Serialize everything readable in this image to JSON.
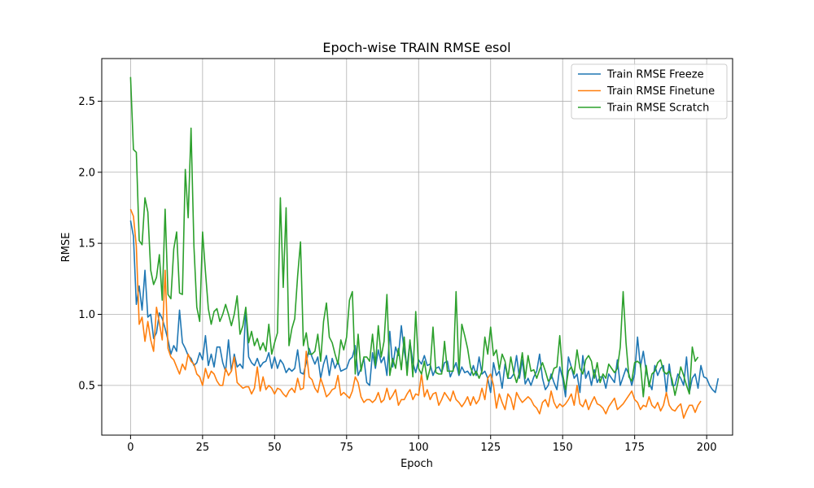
{
  "chart_data": {
    "type": "line",
    "title": "Epoch-wise TRAIN RMSE esol",
    "xlabel": "Epoch",
    "ylabel": "RMSE",
    "xlim": [
      -10,
      209
    ],
    "ylim": [
      0.15,
      2.8
    ],
    "xticks": [
      0,
      25,
      50,
      75,
      100,
      125,
      150,
      175,
      200
    ],
    "yticks": [
      0.5,
      1.0,
      1.5,
      2.0,
      2.5
    ],
    "ytick_labels": [
      "0.5",
      "1.0",
      "1.5",
      "2.0",
      "2.5"
    ],
    "grid": true,
    "legend_position": "top-right",
    "x_start": 0,
    "series": [
      {
        "name": "Train RMSE Freeze",
        "color": "#1f77b4",
        "values": [
          1.66,
          1.55,
          1.07,
          1.2,
          1.03,
          1.31,
          0.98,
          1.0,
          0.83,
          0.87,
          1.01,
          0.97,
          0.9,
          0.82,
          0.72,
          0.78,
          0.74,
          1.03,
          0.8,
          0.76,
          0.71,
          0.69,
          0.64,
          0.66,
          0.73,
          0.68,
          0.85,
          0.64,
          0.72,
          0.63,
          0.77,
          0.77,
          0.66,
          0.6,
          0.82,
          0.6,
          0.72,
          0.63,
          0.65,
          0.62,
          1.04,
          0.7,
          0.66,
          0.64,
          0.69,
          0.63,
          0.66,
          0.67,
          0.73,
          0.62,
          0.7,
          0.62,
          0.68,
          0.65,
          0.59,
          0.62,
          0.6,
          0.62,
          0.75,
          0.59,
          0.58,
          0.66,
          0.76,
          0.7,
          0.65,
          0.7,
          0.55,
          0.65,
          0.71,
          0.57,
          0.69,
          0.62,
          0.67,
          0.6,
          0.61,
          0.62,
          0.68,
          0.7,
          0.78,
          0.57,
          0.62,
          0.69,
          0.52,
          0.5,
          0.73,
          0.62,
          0.75,
          0.66,
          0.7,
          0.57,
          0.88,
          0.63,
          0.77,
          0.71,
          0.92,
          0.74,
          0.63,
          0.81,
          0.66,
          0.59,
          0.68,
          0.65,
          0.71,
          0.64,
          0.65,
          0.57,
          0.62,
          0.63,
          0.59,
          0.66,
          0.67,
          0.56,
          0.61,
          0.66,
          0.57,
          0.63,
          0.59,
          0.6,
          0.57,
          0.64,
          0.57,
          0.7,
          0.58,
          0.6,
          0.55,
          0.45,
          0.66,
          0.57,
          0.6,
          0.48,
          0.65,
          0.55,
          0.55,
          0.58,
          0.71,
          0.55,
          0.68,
          0.51,
          0.55,
          0.5,
          0.56,
          0.6,
          0.72,
          0.55,
          0.47,
          0.5,
          0.58,
          0.52,
          0.47,
          0.63,
          0.55,
          0.42,
          0.7,
          0.63,
          0.55,
          0.58,
          0.45,
          0.71,
          0.55,
          0.6,
          0.5,
          0.61,
          0.52,
          0.56,
          0.56,
          0.48,
          0.58,
          0.55,
          0.52,
          0.68,
          0.5,
          0.56,
          0.62,
          0.58,
          0.5,
          0.58,
          0.84,
          0.63,
          0.74,
          0.6,
          0.52,
          0.47,
          0.64,
          0.57,
          0.62,
          0.64,
          0.45,
          0.65,
          0.5,
          0.5,
          0.58,
          0.55,
          0.5,
          0.7,
          0.45,
          0.55,
          0.58,
          0.48,
          0.64,
          0.56,
          0.55,
          0.5,
          0.47,
          0.45,
          0.55
        ]
      },
      {
        "name": "Train RMSE Finetune",
        "color": "#ff7f0e",
        "values": [
          1.74,
          1.69,
          1.48,
          0.93,
          0.98,
          0.81,
          0.95,
          0.82,
          0.74,
          1.05,
          0.94,
          0.82,
          1.31,
          0.76,
          0.7,
          0.68,
          0.63,
          0.58,
          0.65,
          0.61,
          0.72,
          0.67,
          0.65,
          0.58,
          0.56,
          0.5,
          0.62,
          0.55,
          0.6,
          0.58,
          0.53,
          0.5,
          0.5,
          0.62,
          0.57,
          0.6,
          0.7,
          0.52,
          0.5,
          0.48,
          0.49,
          0.49,
          0.44,
          0.48,
          0.63,
          0.46,
          0.56,
          0.47,
          0.5,
          0.48,
          0.44,
          0.48,
          0.47,
          0.44,
          0.42,
          0.46,
          0.48,
          0.45,
          0.55,
          0.47,
          0.48,
          0.74,
          0.56,
          0.54,
          0.48,
          0.45,
          0.55,
          0.49,
          0.42,
          0.44,
          0.47,
          0.48,
          0.57,
          0.43,
          0.45,
          0.43,
          0.41,
          0.46,
          0.56,
          0.52,
          0.42,
          0.38,
          0.4,
          0.4,
          0.38,
          0.4,
          0.45,
          0.38,
          0.4,
          0.48,
          0.4,
          0.43,
          0.47,
          0.36,
          0.4,
          0.4,
          0.44,
          0.47,
          0.4,
          0.44,
          0.43,
          0.58,
          0.42,
          0.47,
          0.4,
          0.44,
          0.45,
          0.36,
          0.4,
          0.45,
          0.42,
          0.39,
          0.46,
          0.4,
          0.38,
          0.35,
          0.38,
          0.42,
          0.36,
          0.42,
          0.37,
          0.4,
          0.48,
          0.4,
          0.55,
          0.58,
          0.5,
          0.34,
          0.44,
          0.38,
          0.33,
          0.44,
          0.41,
          0.33,
          0.45,
          0.41,
          0.38,
          0.4,
          0.42,
          0.4,
          0.36,
          0.34,
          0.3,
          0.38,
          0.4,
          0.35,
          0.46,
          0.38,
          0.34,
          0.37,
          0.35,
          0.37,
          0.4,
          0.44,
          0.36,
          0.5,
          0.37,
          0.35,
          0.4,
          0.33,
          0.38,
          0.42,
          0.37,
          0.36,
          0.34,
          0.3,
          0.35,
          0.38,
          0.41,
          0.33,
          0.35,
          0.37,
          0.4,
          0.43,
          0.46,
          0.4,
          0.38,
          0.33,
          0.36,
          0.35,
          0.42,
          0.36,
          0.34,
          0.38,
          0.32,
          0.36,
          0.45,
          0.36,
          0.33,
          0.32,
          0.35,
          0.37,
          0.27,
          0.32,
          0.36,
          0.36,
          0.31,
          0.36,
          0.39
        ]
      },
      {
        "name": "Train RMSE Scratch",
        "color": "#2ca02c",
        "values": [
          2.67,
          2.16,
          2.14,
          1.52,
          1.49,
          1.82,
          1.72,
          1.31,
          1.21,
          1.26,
          1.42,
          1.1,
          1.74,
          1.14,
          1.11,
          1.46,
          1.58,
          1.15,
          1.14,
          2.02,
          1.68,
          2.31,
          1.48,
          1.05,
          0.95,
          1.58,
          1.3,
          1.04,
          0.93,
          1.02,
          1.04,
          0.95,
          1.0,
          1.07,
          1.0,
          0.92,
          1.0,
          1.13,
          0.86,
          0.92,
          1.05,
          0.8,
          0.88,
          0.78,
          0.83,
          0.75,
          0.8,
          0.74,
          0.93,
          0.72,
          0.8,
          0.87,
          1.82,
          1.19,
          1.75,
          0.78,
          0.9,
          0.97,
          1.27,
          1.51,
          0.78,
          0.87,
          0.72,
          0.72,
          0.74,
          0.86,
          0.67,
          0.95,
          1.08,
          0.84,
          0.8,
          0.72,
          0.65,
          0.82,
          0.75,
          0.84,
          1.1,
          1.16,
          0.58,
          0.86,
          0.6,
          0.7,
          0.7,
          0.67,
          0.86,
          0.64,
          0.92,
          0.7,
          0.81,
          1.14,
          0.57,
          0.69,
          0.62,
          0.76,
          0.61,
          0.84,
          0.57,
          0.82,
          0.56,
          1.02,
          0.62,
          0.58,
          0.67,
          0.54,
          0.62,
          0.91,
          0.59,
          0.58,
          0.58,
          0.81,
          0.6,
          0.6,
          0.6,
          1.16,
          0.58,
          0.93,
          0.85,
          0.76,
          0.63,
          0.57,
          0.6,
          0.55,
          0.6,
          0.84,
          0.72,
          0.91,
          0.71,
          0.75,
          0.61,
          0.72,
          0.67,
          0.55,
          0.7,
          0.59,
          0.52,
          0.59,
          0.73,
          0.55,
          0.71,
          0.6,
          0.61,
          0.55,
          0.61,
          0.66,
          0.6,
          0.53,
          0.55,
          0.62,
          0.63,
          0.85,
          0.58,
          0.47,
          0.6,
          0.63,
          0.58,
          0.75,
          0.62,
          0.58,
          0.68,
          0.71,
          0.67,
          0.55,
          0.66,
          0.52,
          0.58,
          0.55,
          0.65,
          0.62,
          0.59,
          0.62,
          0.77,
          1.16,
          0.8,
          0.56,
          0.53,
          0.66,
          0.67,
          0.65,
          0.42,
          0.64,
          0.49,
          0.58,
          0.6,
          0.66,
          0.68,
          0.6,
          0.58,
          0.6,
          0.54,
          0.43,
          0.52,
          0.63,
          0.57,
          0.5,
          0.44,
          0.77,
          0.67,
          0.7
        ]
      }
    ]
  }
}
